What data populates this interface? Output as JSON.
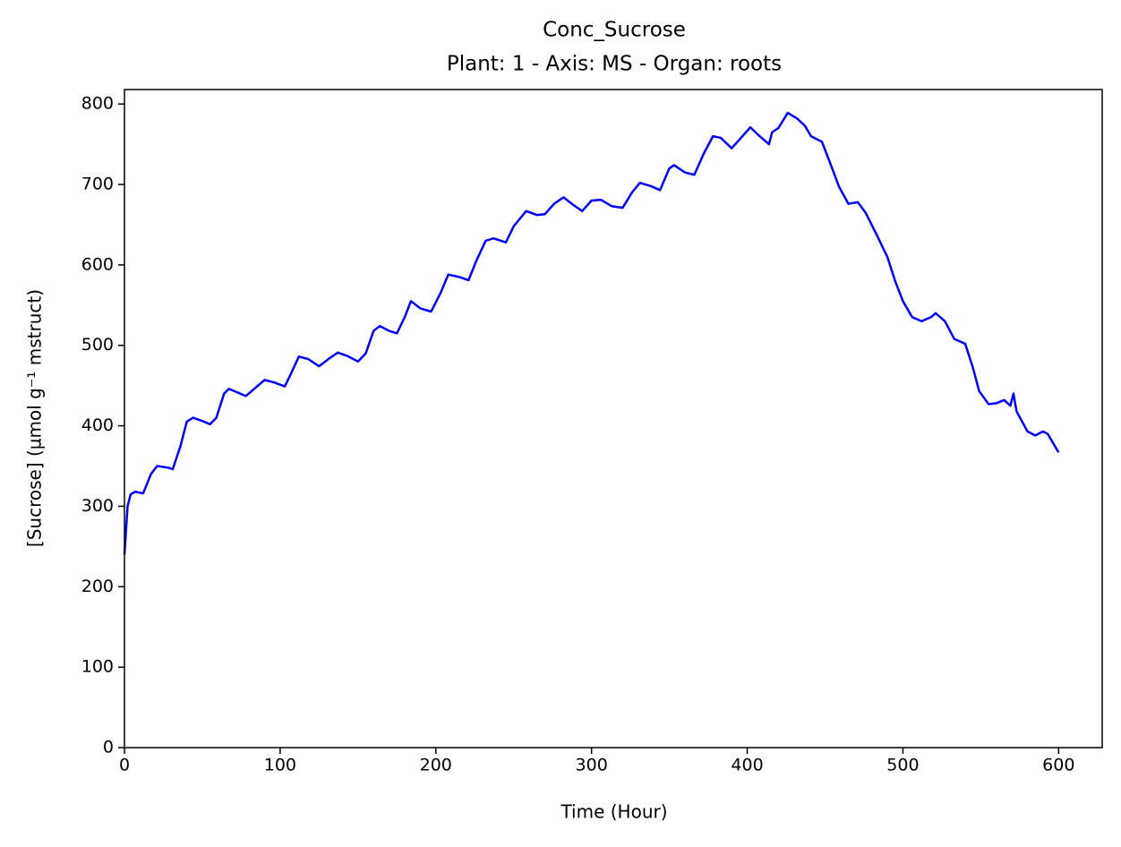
{
  "chart_data": {
    "type": "line",
    "title": "Conc_Sucrose",
    "subtitle": "Plant: 1 - Axis: MS - Organ: roots",
    "x_label": "Time (Hour)",
    "y_label": "[Sucrose] (µmol g⁻¹ mstruct)",
    "xlim": [
      0,
      628
    ],
    "ylim": [
      0,
      818
    ],
    "xticks": [
      0,
      100,
      200,
      300,
      400,
      500,
      600
    ],
    "yticks": [
      0,
      100,
      200,
      300,
      400,
      500,
      600,
      700,
      800
    ],
    "grid": false,
    "x": [
      0,
      2,
      4,
      7,
      12,
      17,
      21,
      28,
      31,
      36,
      40,
      44,
      50,
      55,
      59,
      64,
      67,
      72,
      78,
      84,
      90,
      96,
      103,
      107,
      112,
      118,
      125,
      131,
      137,
      143,
      150,
      155,
      160,
      164,
      170,
      175,
      180,
      184,
      190,
      197,
      203,
      208,
      215,
      221,
      226,
      232,
      237,
      245,
      250,
      258,
      265,
      270,
      276,
      282,
      288,
      294,
      300,
      306,
      313,
      320,
      326,
      331,
      338,
      344,
      350,
      353,
      360,
      366,
      372,
      378,
      383,
      390,
      396,
      402,
      408,
      414,
      416,
      420,
      426,
      432,
      437,
      441,
      448,
      453,
      459,
      465,
      471,
      476,
      483,
      490,
      495,
      500,
      506,
      512,
      518,
      521,
      527,
      533,
      540,
      545,
      549,
      555,
      560,
      565,
      569,
      571,
      573,
      580,
      585,
      590,
      593,
      600
    ],
    "series": [
      {
        "color": "#0000ff",
        "values": [
          240,
          300,
          315,
          318,
          316,
          340,
          350,
          348,
          346,
          375,
          405,
          410,
          406,
          402,
          410,
          440,
          446,
          442,
          437,
          447,
          457,
          454,
          449,
          465,
          486,
          483,
          474,
          483,
          491,
          487,
          480,
          490,
          518,
          524,
          518,
          515,
          535,
          555,
          546,
          542,
          565,
          588,
          585,
          581,
          605,
          630,
          633,
          628,
          648,
          667,
          662,
          663,
          676,
          684,
          675,
          667,
          680,
          681,
          673,
          671,
          690,
          702,
          698,
          693,
          720,
          724,
          715,
          712,
          738,
          760,
          758,
          745,
          758,
          771,
          760,
          750,
          765,
          770,
          789,
          782,
          773,
          760,
          753,
          728,
          697,
          676,
          678,
          665,
          638,
          610,
          580,
          555,
          535,
          530,
          535,
          540,
          530,
          508,
          502,
          472,
          443,
          427,
          428,
          432,
          425,
          440,
          418,
          393,
          388,
          393,
          390,
          367
        ]
      }
    ]
  }
}
